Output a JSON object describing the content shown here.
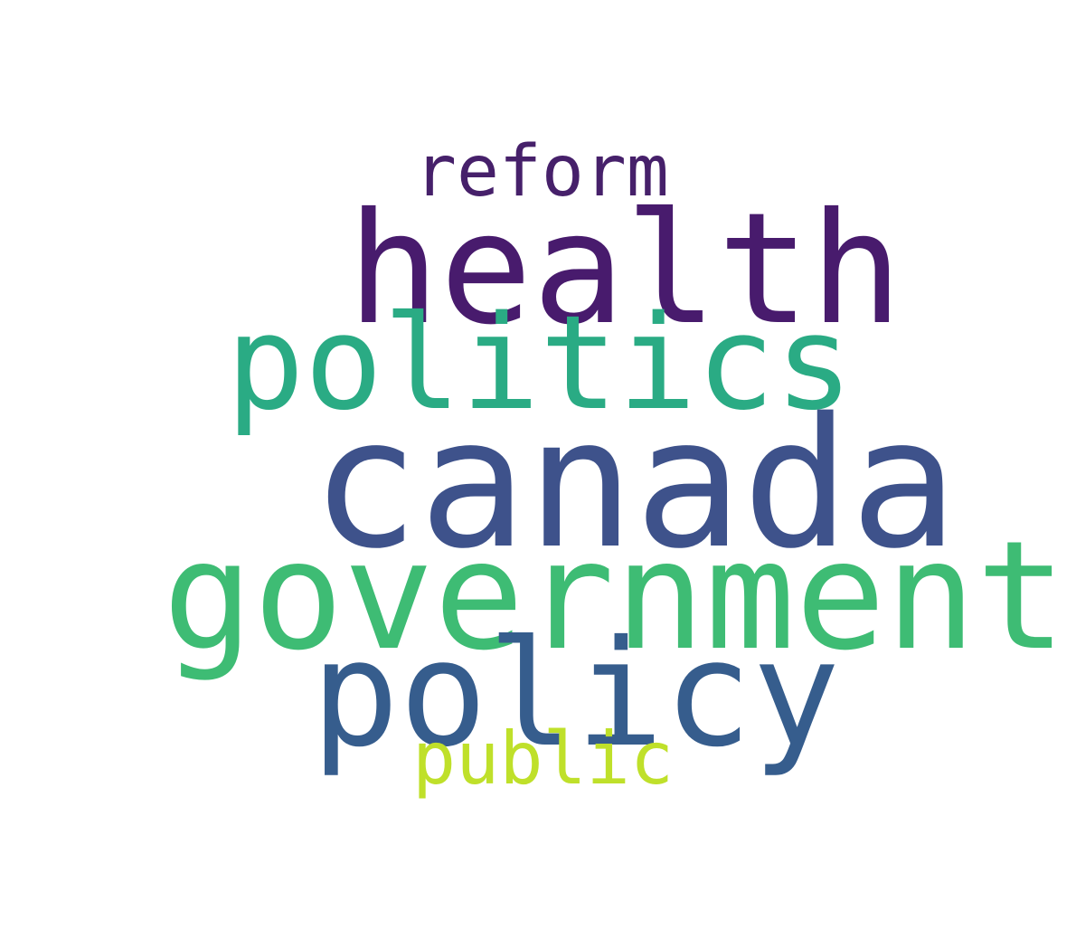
{
  "words": [
    {
      "text": "reform",
      "color": "#46206a"
    },
    {
      "text": "health",
      "color": "#481b6d"
    },
    {
      "text": "politics",
      "color": "#2aab84"
    },
    {
      "text": "canada",
      "color": "#3e528b"
    },
    {
      "text": "government",
      "color": "#3ebc74"
    },
    {
      "text": "policy",
      "color": "#365d8d"
    },
    {
      "text": "public",
      "color": "#bfe02a"
    }
  ]
}
